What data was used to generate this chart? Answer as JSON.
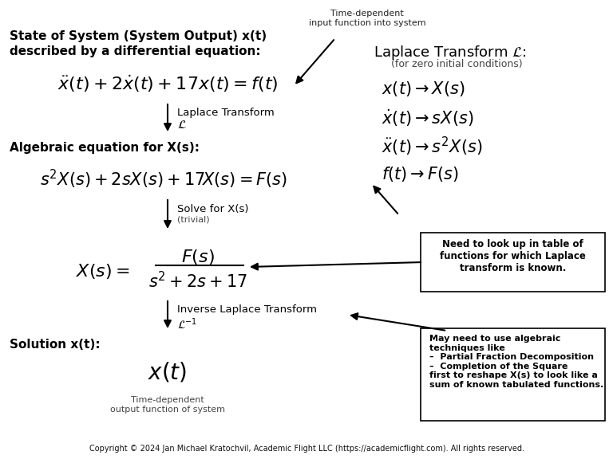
{
  "bg_color": "#ffffff",
  "copyright": "Copyright © 2024 Jan Michael Kratochvil, Academic Flight LLC (https://academicflight.com). All rights reserved.",
  "left_label1": "State of System (System Output) x(t)\ndescribed by a differential equation:",
  "eq1": "$\\ddot{x}(t) + 2\\dot{x}(t) + 17x(t) = f(t)$",
  "left_label2": "Algebraic equation for X(s):",
  "eq2": "$s^2X(s) + 2sX(s) + 17X(s) = F(s)$",
  "eq3_num": "$F(s)$",
  "eq3_den": "$s^2 + 2s + 17$",
  "eq3_lhs": "$X(s) = $",
  "left_label3": "Solution x(t):",
  "eq4": "$x(t)$",
  "bottom_label": "Time-dependent\noutput function of system",
  "top_label": "Time-dependent\ninput function into system",
  "right_title": "Laplace Transform $\\mathcal{L}$:",
  "right_subtitle": "(for zero initial conditions)",
  "right_eq1": "$x(t) \\rightarrow X(s)$",
  "right_eq2": "$\\dot{x}(t) \\rightarrow sX(s)$",
  "right_eq3": "$\\ddot{x}(t) \\rightarrow s^2X(s)$",
  "right_eq4": "$f(t) \\rightarrow F(s)$",
  "box1_text": "Need to look up in table of\nfunctions for which Laplace\ntransform is known.",
  "box2_text": "May need to use algebraic\ntechniques like\n–  Partial Fraction Decomposition\n–  Completion of the Square\nfirst to reshape X(s) to look like a\nsum of known tabulated functions."
}
